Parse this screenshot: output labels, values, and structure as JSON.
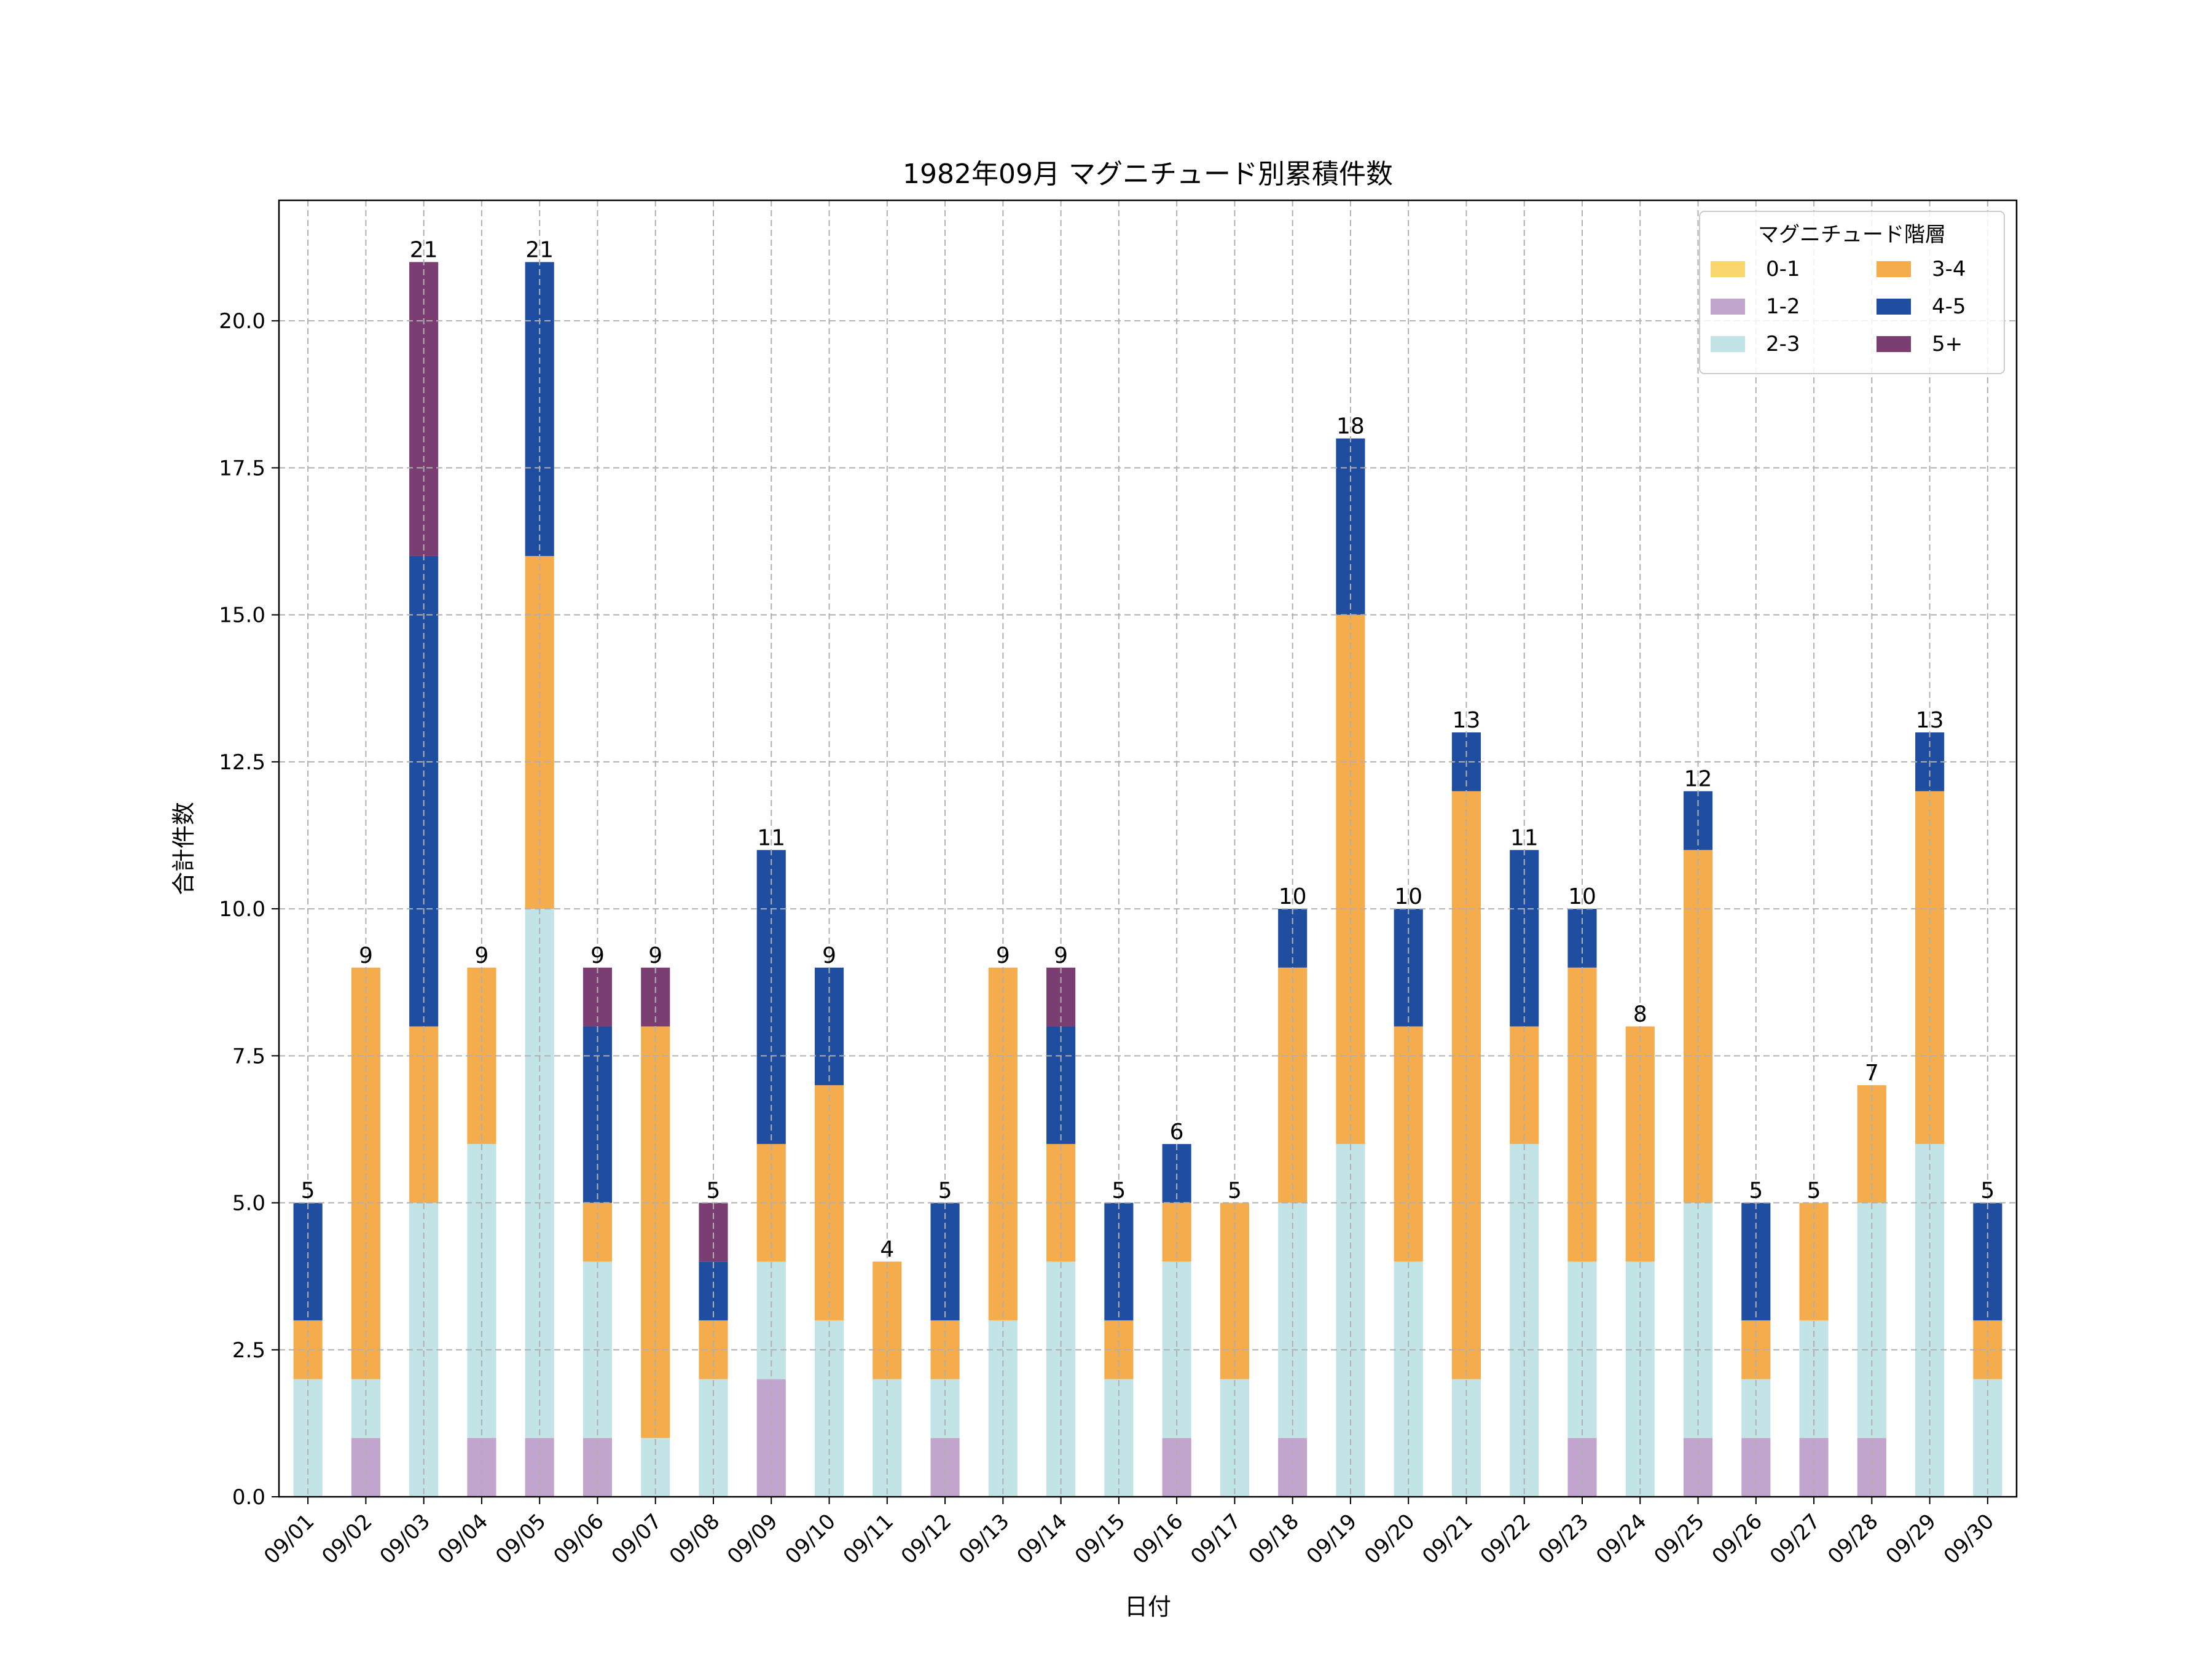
{
  "chart_data": {
    "type": "bar",
    "stacked": true,
    "title": "1982年09月 マグニチュード別累積件数",
    "xlabel": "日付",
    "ylabel": "合計件数",
    "ylim": [
      0,
      22.05
    ],
    "yticks": [
      0.0,
      2.5,
      5.0,
      7.5,
      10.0,
      12.5,
      15.0,
      17.5,
      20.0
    ],
    "ytick_labels": [
      "0.0",
      "2.5",
      "5.0",
      "7.5",
      "10.0",
      "12.5",
      "15.0",
      "17.5",
      "20.0"
    ],
    "grid": true,
    "legend_title": "マグニチュード階層",
    "legend_position": "top-right",
    "categories": [
      "09/01",
      "09/02",
      "09/03",
      "09/04",
      "09/05",
      "09/06",
      "09/07",
      "09/08",
      "09/09",
      "09/10",
      "09/11",
      "09/12",
      "09/13",
      "09/14",
      "09/15",
      "09/16",
      "09/17",
      "09/18",
      "09/19",
      "09/20",
      "09/21",
      "09/22",
      "09/23",
      "09/24",
      "09/25",
      "09/26",
      "09/27",
      "09/28",
      "09/29",
      "09/30"
    ],
    "series": [
      {
        "name": "0-1",
        "color": "#fad66f",
        "values": [
          0,
          0,
          0,
          0,
          0,
          0,
          0,
          0,
          0,
          0,
          0,
          0,
          0,
          0,
          0,
          0,
          0,
          0,
          0,
          0,
          0,
          0,
          0,
          0,
          0,
          0,
          0,
          0,
          0,
          0
        ]
      },
      {
        "name": "1-2",
        "color": "#c2a5cc",
        "values": [
          0,
          1,
          0,
          1,
          1,
          1,
          0,
          0,
          2,
          0,
          0,
          1,
          0,
          0,
          0,
          1,
          0,
          1,
          0,
          0,
          0,
          0,
          1,
          0,
          1,
          1,
          1,
          1,
          0,
          0
        ]
      },
      {
        "name": "2-3",
        "color": "#c2e4e6",
        "values": [
          2,
          1,
          5,
          5,
          9,
          3,
          1,
          2,
          2,
          3,
          2,
          1,
          3,
          4,
          2,
          3,
          2,
          4,
          6,
          4,
          2,
          6,
          3,
          4,
          4,
          1,
          2,
          4,
          6,
          2
        ]
      },
      {
        "name": "3-4",
        "color": "#f4ac4c",
        "values": [
          1,
          7,
          3,
          3,
          6,
          1,
          7,
          1,
          2,
          4,
          2,
          1,
          6,
          2,
          1,
          1,
          3,
          4,
          9,
          4,
          10,
          2,
          5,
          4,
          6,
          1,
          2,
          2,
          6,
          1
        ]
      },
      {
        "name": "4-5",
        "color": "#1f4ea1",
        "values": [
          2,
          0,
          8,
          0,
          5,
          3,
          0,
          1,
          5,
          2,
          0,
          2,
          0,
          2,
          2,
          1,
          0,
          1,
          3,
          2,
          1,
          3,
          1,
          0,
          1,
          2,
          0,
          0,
          1,
          2
        ]
      },
      {
        "name": "5+",
        "color": "#7a3e72",
        "values": [
          0,
          0,
          5,
          0,
          0,
          1,
          1,
          1,
          0,
          0,
          0,
          0,
          0,
          1,
          0,
          0,
          0,
          0,
          0,
          0,
          0,
          0,
          0,
          0,
          0,
          0,
          0,
          0,
          0,
          0
        ]
      }
    ],
    "totals": [
      5,
      9,
      21,
      9,
      21,
      9,
      9,
      5,
      11,
      9,
      4,
      5,
      9,
      9,
      5,
      6,
      5,
      10,
      18,
      10,
      13,
      11,
      10,
      8,
      12,
      5,
      5,
      7,
      13,
      5
    ]
  }
}
